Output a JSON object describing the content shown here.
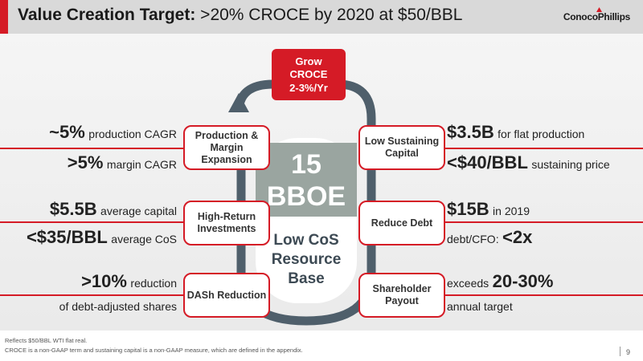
{
  "header": {
    "title_bold": "Value Creation Target:",
    "title_rest": " >20% CROCE by 2020 at $50/BBL",
    "logo": "ConocoPhillips"
  },
  "center": {
    "grow_box": [
      "Grow",
      "CROCE",
      "2-3%/Yr"
    ],
    "number": "15",
    "unit": "BBOE",
    "base": [
      "Low CoS",
      "Resource",
      "Base"
    ]
  },
  "boxes": {
    "production": "Production & Margin Expansion",
    "high_return": "High-Return Investments",
    "dash": "DASh Reduction",
    "sustaining": "Low Sustaining Capital",
    "debt": "Reduce Debt",
    "payout": "Shareholder Payout"
  },
  "left_stats": {
    "s1_big": "~5%",
    "s1_small": "production CAGR",
    "s2_big": ">5%",
    "s2_small": "margin CAGR",
    "s3_big": "$5.5B",
    "s3_small": "average capital",
    "s4_big": "<$35/BBL",
    "s4_small": "average CoS",
    "s5_big": ">10%",
    "s5_small": "reduction",
    "s6_small": "of debt-adjusted shares"
  },
  "right_stats": {
    "s1_big": "$3.5B",
    "s1_small": "for flat production",
    "s2_big": "<$40/BBL",
    "s2_small": "sustaining price",
    "s3_big": "$15B",
    "s3_small": "in 2019",
    "s4_small": "debt/CFO:",
    "s4_big": "<2x",
    "s5_small": "exceeds",
    "s5_big": "20-30%",
    "s6_small": "annual target"
  },
  "footer": {
    "note1": "Reflects $50/BBL WTI flat real.",
    "note2": "CROCE is a non-GAAP term and sustaining capital is a non-GAAP measure, which are defined in the appendix.",
    "page": "9"
  },
  "colors": {
    "accent": "#d51b26",
    "loop": "#4f5f6b",
    "base_fill": "#9aa5a0"
  }
}
